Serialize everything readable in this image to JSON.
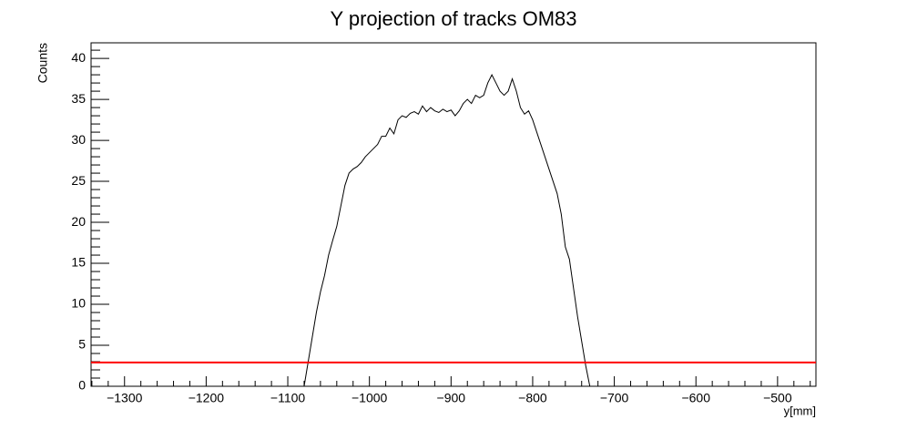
{
  "chart_data": {
    "type": "line",
    "title": "Y projection of tracks OM83",
    "xlabel": "y[mm]",
    "ylabel": "Counts",
    "x": [
      -1080,
      -1075,
      -1070,
      -1065,
      -1060,
      -1055,
      -1050,
      -1045,
      -1040,
      -1035,
      -1030,
      -1025,
      -1020,
      -1015,
      -1010,
      -1005,
      -1000,
      -995,
      -990,
      -985,
      -980,
      -975,
      -970,
      -965,
      -960,
      -955,
      -950,
      -945,
      -940,
      -935,
      -930,
      -925,
      -920,
      -915,
      -910,
      -905,
      -900,
      -895,
      -890,
      -885,
      -880,
      -875,
      -870,
      -865,
      -860,
      -855,
      -850,
      -845,
      -840,
      -835,
      -830,
      -825,
      -820,
      -815,
      -810,
      -805,
      -800,
      -795,
      -790,
      -785,
      -780,
      -775,
      -770,
      -765,
      -760,
      -755,
      -750,
      -745,
      -740,
      -735,
      -730
    ],
    "series": [
      {
        "color": "#000000",
        "values": [
          0,
          3,
          6,
          9,
          11.5,
          13.5,
          16,
          17.8,
          19.5,
          22,
          24.5,
          26,
          26.5,
          26.8,
          27.3,
          28,
          28.5,
          29,
          29.5,
          30.5,
          30.5,
          31.5,
          30.8,
          32.5,
          33,
          32.8,
          33.3,
          33.5,
          33.2,
          34.2,
          33.5,
          34,
          33.6,
          33.4,
          33.8,
          33.5,
          33.7,
          33,
          33.6,
          34.5,
          35,
          34.5,
          35.5,
          35.2,
          35.5,
          37,
          38,
          37,
          36,
          35.5,
          36,
          37.5,
          36,
          34,
          33.2,
          33.6,
          32.5,
          31,
          29.5,
          28,
          26.5,
          25,
          23.5,
          21,
          17,
          15.5,
          12,
          8.5,
          5.5,
          2.5,
          0
        ]
      }
    ],
    "hline": {
      "value": 2.9,
      "color": "#ff0000"
    },
    "xlim": [
      -1341,
      -453
    ],
    "xticks": [
      {
        "value": -1300,
        "label": "−1300"
      },
      {
        "value": -1200,
        "label": "−1200"
      },
      {
        "value": -1100,
        "label": "−1100"
      },
      {
        "value": -1000,
        "label": "−1000"
      },
      {
        "value": -900,
        "label": "−900"
      },
      {
        "value": -800,
        "label": "−800"
      },
      {
        "value": -700,
        "label": "−700"
      },
      {
        "value": -600,
        "label": "−600"
      },
      {
        "value": -500,
        "label": "−500"
      }
    ],
    "ylim": [
      0,
      41.9
    ],
    "yticks": [
      0,
      5,
      10,
      15,
      20,
      25,
      30,
      35,
      40
    ]
  }
}
